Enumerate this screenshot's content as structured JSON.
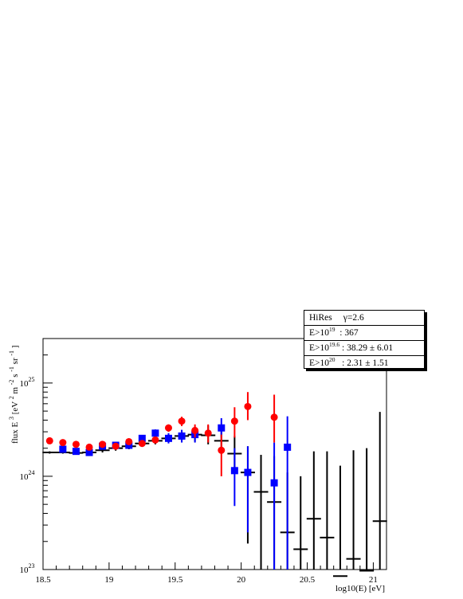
{
  "chart_data": {
    "type": "scatter",
    "title": "",
    "xlabel": "log10(E) [eV]",
    "ylabel": {
      "base": "flux E",
      "base_exp": "3",
      "unit_open": " [eV",
      "unit_exp1": "2",
      "unit_m": " m",
      "unit_exp2": "-2",
      "unit_s": " s",
      "unit_exp3": "-1",
      "unit_sr": " sr",
      "unit_exp4": "-1",
      "unit_close": "]"
    },
    "xlim": [
      18.5,
      21.1
    ],
    "ylim": [
      1e+23,
      3e+25
    ],
    "y_scale": "log",
    "x_ticks": [
      {
        "v": 18.5,
        "label": "18.5"
      },
      {
        "v": 19,
        "label": "19"
      },
      {
        "v": 19.5,
        "label": "19.5"
      },
      {
        "v": 20,
        "label": "20"
      },
      {
        "v": 20.5,
        "label": "20.5"
      },
      {
        "v": 21,
        "label": "21"
      }
    ],
    "y_ticks": [
      {
        "v": 1e+23,
        "base": "10",
        "exp": "23"
      },
      {
        "v": 1e+24,
        "base": "10",
        "exp": "24"
      },
      {
        "v": 1e+25,
        "base": "10",
        "exp": "25"
      }
    ],
    "series": [
      {
        "color": "#000000",
        "marker": "dash",
        "points": [
          {
            "x": 18.55,
            "y": 1.8e+24,
            "ylo": 1.75e+24,
            "yhi": 1.85e+24
          },
          {
            "x": 18.65,
            "y": 1.8e+24,
            "ylo": 1.75e+24,
            "yhi": 1.85e+24
          },
          {
            "x": 18.75,
            "y": 1.78e+24,
            "ylo": 1.72e+24,
            "yhi": 1.84e+24
          },
          {
            "x": 18.85,
            "y": 1.8e+24,
            "ylo": 1.72e+24,
            "yhi": 1.88e+24
          },
          {
            "x": 18.95,
            "y": 1.9e+24,
            "ylo": 1.8e+24,
            "yhi": 2e+24
          },
          {
            "x": 19.05,
            "y": 2e+24,
            "ylo": 1.88e+24,
            "yhi": 2.12e+24
          },
          {
            "x": 19.15,
            "y": 2.1e+24,
            "ylo": 1.95e+24,
            "yhi": 2.25e+24
          },
          {
            "x": 19.25,
            "y": 2.25e+24,
            "ylo": 2.08e+24,
            "yhi": 2.42e+24
          },
          {
            "x": 19.35,
            "y": 2.4e+24,
            "ylo": 2.2e+24,
            "yhi": 2.62e+24
          },
          {
            "x": 19.45,
            "y": 2.55e+24,
            "ylo": 2.28e+24,
            "yhi": 2.85e+24
          },
          {
            "x": 19.55,
            "y": 2.7e+24,
            "ylo": 2.35e+24,
            "yhi": 3.1e+24
          },
          {
            "x": 19.65,
            "y": 2.8e+24,
            "ylo": 2.35e+24,
            "yhi": 3.35e+24
          },
          {
            "x": 19.75,
            "y": 2.75e+24,
            "ylo": 2.2e+24,
            "yhi": 3.5e+24
          },
          {
            "x": 19.85,
            "y": 2.4e+24,
            "ylo": 1.8e+24,
            "yhi": 3.3e+24
          },
          {
            "x": 19.95,
            "y": 1.75e+24,
            "ylo": 1.15e+24,
            "yhi": 2.7e+24
          },
          {
            "x": 20.05,
            "y": 1.1e+24,
            "ylo": 1.9e+23,
            "yhi": 2.1e+24
          },
          {
            "x": 20.15,
            "y": 6.8e+23,
            "ylo": 1e+20,
            "yhi": 1.7e+24
          },
          {
            "x": 20.25,
            "y": 5.3e+23,
            "ylo": 1e+20,
            "yhi": 1.65e+24
          },
          {
            "x": 20.35,
            "y": 2.5e+23,
            "ylo": 1e+20,
            "yhi": 1.1e+24
          },
          {
            "x": 20.45,
            "y": 1.65e+23,
            "ylo": 1e+20,
            "yhi": 1e+24
          },
          {
            "x": 20.55,
            "y": 3.5e+23,
            "ylo": 1e+20,
            "yhi": 1.85e+24
          },
          {
            "x": 20.65,
            "y": 2.2e+23,
            "ylo": 1e+20,
            "yhi": 1.85e+24
          },
          {
            "x": 20.75,
            "y": 8.5e+22,
            "ylo": 1e+20,
            "yhi": 1.3e+24
          },
          {
            "x": 20.85,
            "y": 1.3e+23,
            "ylo": 1e+20,
            "yhi": 1.9e+24
          },
          {
            "x": 20.95,
            "y": 9.7e+22,
            "ylo": 1e+20,
            "yhi": 2e+24
          },
          {
            "x": 21.05,
            "y": 3.3e+23,
            "ylo": 1e+20,
            "yhi": 4.9e+24
          }
        ]
      },
      {
        "color": "#0000ff",
        "marker": "square",
        "points": [
          {
            "x": 18.65,
            "y": 1.95e+24,
            "ylo": 1.85e+24,
            "yhi": 2.05e+24
          },
          {
            "x": 18.75,
            "y": 1.85e+24,
            "ylo": 1.75e+24,
            "yhi": 1.95e+24
          },
          {
            "x": 18.85,
            "y": 1.8e+24,
            "ylo": 1.7e+24,
            "yhi": 1.9e+24
          },
          {
            "x": 18.95,
            "y": 2.1e+24,
            "ylo": 1.98e+24,
            "yhi": 2.22e+24
          },
          {
            "x": 19.05,
            "y": 2.15e+24,
            "ylo": 2e+24,
            "yhi": 2.3e+24
          },
          {
            "x": 19.15,
            "y": 2.15e+24,
            "ylo": 1.98e+24,
            "yhi": 2.32e+24
          },
          {
            "x": 19.25,
            "y": 2.55e+24,
            "ylo": 2.35e+24,
            "yhi": 2.75e+24
          },
          {
            "x": 19.35,
            "y": 2.9e+24,
            "ylo": 2.62e+24,
            "yhi": 3.18e+24
          },
          {
            "x": 19.45,
            "y": 2.55e+24,
            "ylo": 2.25e+24,
            "yhi": 2.9e+24
          },
          {
            "x": 19.55,
            "y": 2.7e+24,
            "ylo": 2.3e+24,
            "yhi": 3.15e+24
          },
          {
            "x": 19.65,
            "y": 2.8e+24,
            "ylo": 2.3e+24,
            "yhi": 3.4e+24
          },
          {
            "x": 19.85,
            "y": 3.3e+24,
            "ylo": 2.6e+24,
            "yhi": 4.2e+24
          },
          {
            "x": 19.95,
            "y": 1.15e+24,
            "ylo": 4.8e+23,
            "yhi": 2e+24
          },
          {
            "x": 20.05,
            "y": 1.1e+24,
            "ylo": 2.5e+23,
            "yhi": 2.1e+24
          },
          {
            "x": 20.25,
            "y": 8.5e+23,
            "ylo": 1e+20,
            "yhi": 2.3e+24
          },
          {
            "x": 20.35,
            "y": 2.05e+24,
            "ylo": 1e+20,
            "yhi": 4.4e+24
          }
        ]
      },
      {
        "color": "#ff0000",
        "marker": "circle",
        "points": [
          {
            "x": 18.55,
            "y": 2.4e+24,
            "ylo": 2.3e+24,
            "yhi": 2.5e+24
          },
          {
            "x": 18.65,
            "y": 2.3e+24,
            "ylo": 2.2e+24,
            "yhi": 2.4e+24
          },
          {
            "x": 18.75,
            "y": 2.2e+24,
            "ylo": 2.1e+24,
            "yhi": 2.3e+24
          },
          {
            "x": 18.85,
            "y": 2.05e+24,
            "ylo": 1.95e+24,
            "yhi": 2.15e+24
          },
          {
            "x": 18.95,
            "y": 2.2e+24,
            "ylo": 2.08e+24,
            "yhi": 2.32e+24
          },
          {
            "x": 19.05,
            "y": 2.1e+24,
            "ylo": 1.98e+24,
            "yhi": 2.22e+24
          },
          {
            "x": 19.15,
            "y": 2.35e+24,
            "ylo": 2.2e+24,
            "yhi": 2.5e+24
          },
          {
            "x": 19.25,
            "y": 2.25e+24,
            "ylo": 2.08e+24,
            "yhi": 2.42e+24
          },
          {
            "x": 19.35,
            "y": 2.45e+24,
            "ylo": 2.25e+24,
            "yhi": 2.65e+24
          },
          {
            "x": 19.45,
            "y": 3.3e+24,
            "ylo": 3e+24,
            "yhi": 3.6e+24
          },
          {
            "x": 19.55,
            "y": 3.9e+24,
            "ylo": 3.45e+24,
            "yhi": 4.35e+24
          },
          {
            "x": 19.65,
            "y": 3.1e+24,
            "ylo": 2.6e+24,
            "yhi": 3.6e+24
          },
          {
            "x": 19.75,
            "y": 2.9e+24,
            "ylo": 2.3e+24,
            "yhi": 3.6e+24
          },
          {
            "x": 19.85,
            "y": 1.9e+24,
            "ylo": 1e+24,
            "yhi": 2.8e+24
          },
          {
            "x": 19.95,
            "y": 3.9e+24,
            "ylo": 2.6e+24,
            "yhi": 5.5e+24
          },
          {
            "x": 20.05,
            "y": 5.6e+24,
            "ylo": 4e+24,
            "yhi": 8e+24
          },
          {
            "x": 20.25,
            "y": 4.3e+24,
            "ylo": 2.3e+24,
            "yhi": 7.5e+24
          }
        ]
      }
    ]
  },
  "stats_box": {
    "title": "HiRes",
    "gamma_symbol": "γ",
    "gamma_value": "=2.6",
    "rows": [
      {
        "base": "E>10",
        "exp": "19",
        "text": "  : 367"
      },
      {
        "base": "E>10",
        "exp": "19.6",
        "text": " : 38.29 ± 6.01"
      },
      {
        "base": "E>10",
        "exp": "20",
        "text": "   : 2.31 ± 1.51"
      }
    ]
  }
}
